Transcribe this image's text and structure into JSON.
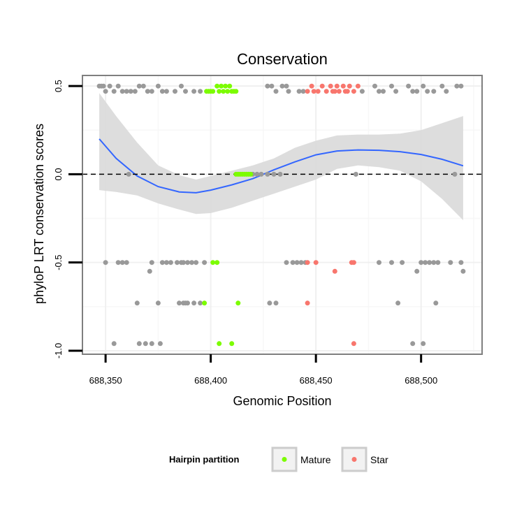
{
  "chart_data": {
    "type": "scatter",
    "title": "Conservation",
    "xlabel": "Genomic Position",
    "ylabel": "phyloP LRT conservation scores",
    "xlim": [
      688339,
      688529
    ],
    "ylim": [
      -1.02,
      0.56
    ],
    "x_ticks": [
      688350,
      688400,
      688450,
      688500
    ],
    "x_tick_labels": [
      "688,350",
      "688,400",
      "688,450",
      "688,500"
    ],
    "y_ticks": [
      -1.0,
      -0.5,
      0.0,
      0.5
    ],
    "y_tick_labels": [
      "-1.0",
      "-0.5",
      "0.0",
      "0.5"
    ],
    "reference_line": {
      "y": 0,
      "style": "dashed"
    },
    "legend": {
      "title": "Hairpin partition",
      "position": "bottom",
      "entries": [
        {
          "label": "Mature",
          "color": "#7cfc00"
        },
        {
          "label": "Star",
          "color": "#f8766d"
        }
      ]
    },
    "colors": {
      "other": "#999999",
      "Mature": "#7cfc00",
      "Star": "#f8766d",
      "smooth": "#3366ff",
      "band": "#d9d9d9"
    },
    "smooth": {
      "x": [
        688347,
        688355,
        688365,
        688375,
        688385,
        688393,
        688400,
        688410,
        688420,
        688430,
        688440,
        688450,
        688460,
        688470,
        688480,
        688490,
        688500,
        688510,
        688520
      ],
      "y": [
        0.2,
        0.09,
        -0.01,
        -0.07,
        -0.1,
        -0.105,
        -0.09,
        -0.06,
        -0.025,
        0.025,
        0.07,
        0.11,
        0.132,
        0.138,
        0.136,
        0.128,
        0.112,
        0.085,
        0.048
      ],
      "lower": [
        -0.09,
        -0.1,
        -0.12,
        -0.165,
        -0.2,
        -0.225,
        -0.22,
        -0.19,
        -0.15,
        -0.11,
        -0.07,
        -0.03,
        0.03,
        0.05,
        0.04,
        0.02,
        -0.04,
        -0.14,
        -0.26
      ],
      "upper": [
        0.46,
        0.33,
        0.18,
        0.05,
        -0.005,
        -0.03,
        -0.01,
        0.02,
        0.05,
        0.09,
        0.15,
        0.19,
        0.22,
        0.225,
        0.225,
        0.23,
        0.25,
        0.29,
        0.33
      ]
    },
    "points": {
      "other": [
        [
          688347,
          0.5
        ],
        [
          688348,
          0.5
        ],
        [
          688349,
          0.5
        ],
        [
          688350,
          0.47
        ],
        [
          688352,
          0.5
        ],
        [
          688354,
          0.47
        ],
        [
          688356,
          0.5
        ],
        [
          688358,
          0.47
        ],
        [
          688360,
          0.47
        ],
        [
          688362,
          0.47
        ],
        [
          688364,
          0.47
        ],
        [
          688366,
          0.5
        ],
        [
          688368,
          0.5
        ],
        [
          688370,
          0.47
        ],
        [
          688372,
          0.47
        ],
        [
          688375,
          0.5
        ],
        [
          688377,
          0.47
        ],
        [
          688379,
          0.47
        ],
        [
          688383,
          0.47
        ],
        [
          688386,
          0.5
        ],
        [
          688388,
          0.47
        ],
        [
          688392,
          0.47
        ],
        [
          688395,
          0.47
        ],
        [
          688427,
          0.5
        ],
        [
          688429,
          0.5
        ],
        [
          688431,
          0.47
        ],
        [
          688434,
          0.5
        ],
        [
          688436,
          0.5
        ],
        [
          688437,
          0.47
        ],
        [
          688442,
          0.47
        ],
        [
          688444,
          0.47
        ],
        [
          688472,
          0.47
        ],
        [
          688478,
          0.5
        ],
        [
          688480,
          0.47
        ],
        [
          688482,
          0.47
        ],
        [
          688486,
          0.5
        ],
        [
          688488,
          0.47
        ],
        [
          688494,
          0.5
        ],
        [
          688496,
          0.47
        ],
        [
          688498,
          0.47
        ],
        [
          688501,
          0.5
        ],
        [
          688503,
          0.47
        ],
        [
          688506,
          0.47
        ],
        [
          688510,
          0.5
        ],
        [
          688512,
          0.47
        ],
        [
          688517,
          0.5
        ],
        [
          688519,
          0.5
        ],
        [
          688361,
          0.0
        ],
        [
          688420,
          0.0
        ],
        [
          688422,
          0.0
        ],
        [
          688424,
          0.0
        ],
        [
          688427,
          0.0
        ],
        [
          688430,
          0.0
        ],
        [
          688433,
          0.0
        ],
        [
          688469,
          0.0
        ],
        [
          688516,
          0.0
        ],
        [
          688350,
          -0.5
        ],
        [
          688356,
          -0.5
        ],
        [
          688358,
          -0.5
        ],
        [
          688360,
          -0.5
        ],
        [
          688372,
          -0.5
        ],
        [
          688371,
          -0.55
        ],
        [
          688377,
          -0.5
        ],
        [
          688379,
          -0.5
        ],
        [
          688381,
          -0.5
        ],
        [
          688384,
          -0.5
        ],
        [
          688386,
          -0.5
        ],
        [
          688387,
          -0.5
        ],
        [
          688389,
          -0.5
        ],
        [
          688391,
          -0.5
        ],
        [
          688393,
          -0.5
        ],
        [
          688397,
          -0.5
        ],
        [
          688436,
          -0.5
        ],
        [
          688439,
          -0.5
        ],
        [
          688441,
          -0.5
        ],
        [
          688443,
          -0.5
        ],
        [
          688445,
          -0.5
        ],
        [
          688480,
          -0.5
        ],
        [
          688486,
          -0.5
        ],
        [
          688491,
          -0.5
        ],
        [
          688498,
          -0.55
        ],
        [
          688500,
          -0.5
        ],
        [
          688502,
          -0.5
        ],
        [
          688504,
          -0.5
        ],
        [
          688506,
          -0.5
        ],
        [
          688508,
          -0.5
        ],
        [
          688514,
          -0.5
        ],
        [
          688519,
          -0.5
        ],
        [
          688520,
          -0.55
        ],
        [
          688365,
          -0.73
        ],
        [
          688375,
          -0.73
        ],
        [
          688385,
          -0.73
        ],
        [
          688387,
          -0.73
        ],
        [
          688388,
          -0.73
        ],
        [
          688389,
          -0.73
        ],
        [
          688392,
          -0.73
        ],
        [
          688395,
          -0.73
        ],
        [
          688428,
          -0.73
        ],
        [
          688431,
          -0.73
        ],
        [
          688489,
          -0.73
        ],
        [
          688507,
          -0.73
        ],
        [
          688354,
          -0.96
        ],
        [
          688366,
          -0.96
        ],
        [
          688369,
          -0.96
        ],
        [
          688372,
          -0.96
        ],
        [
          688376,
          -0.96
        ],
        [
          688496,
          -0.96
        ],
        [
          688501,
          -0.96
        ]
      ],
      "Mature": [
        [
          688398,
          0.47
        ],
        [
          688399,
          0.47
        ],
        [
          688400,
          0.47
        ],
        [
          688401,
          0.47
        ],
        [
          688403,
          0.5
        ],
        [
          688404,
          0.47
        ],
        [
          688405,
          0.5
        ],
        [
          688406,
          0.47
        ],
        [
          688407,
          0.5
        ],
        [
          688408,
          0.47
        ],
        [
          688409,
          0.5
        ],
        [
          688410,
          0.47
        ],
        [
          688411,
          0.47
        ],
        [
          688412,
          0.47
        ],
        [
          688412,
          0.0
        ],
        [
          688413,
          0.0
        ],
        [
          688414,
          0.0
        ],
        [
          688415,
          0.0
        ],
        [
          688416,
          0.0
        ],
        [
          688417,
          0.0
        ],
        [
          688418,
          0.0
        ],
        [
          688419,
          0.0
        ],
        [
          688401,
          -0.5
        ],
        [
          688403,
          -0.5
        ],
        [
          688397,
          -0.73
        ],
        [
          688413,
          -0.73
        ],
        [
          688404,
          -0.96
        ],
        [
          688410,
          -0.96
        ]
      ],
      "Star": [
        [
          688446,
          0.47
        ],
        [
          688448,
          0.5
        ],
        [
          688449,
          0.47
        ],
        [
          688451,
          0.47
        ],
        [
          688453,
          0.5
        ],
        [
          688455,
          0.47
        ],
        [
          688457,
          0.5
        ],
        [
          688458,
          0.47
        ],
        [
          688459,
          0.47
        ],
        [
          688460,
          0.5
        ],
        [
          688461,
          0.47
        ],
        [
          688463,
          0.5
        ],
        [
          688464,
          0.47
        ],
        [
          688465,
          0.47
        ],
        [
          688466,
          0.5
        ],
        [
          688468,
          0.47
        ],
        [
          688470,
          0.5
        ],
        [
          688446,
          -0.5
        ],
        [
          688450,
          -0.5
        ],
        [
          688459,
          -0.55
        ],
        [
          688467,
          -0.5
        ],
        [
          688468,
          -0.5
        ],
        [
          688446,
          -0.73
        ],
        [
          688468,
          -0.96
        ]
      ]
    }
  }
}
